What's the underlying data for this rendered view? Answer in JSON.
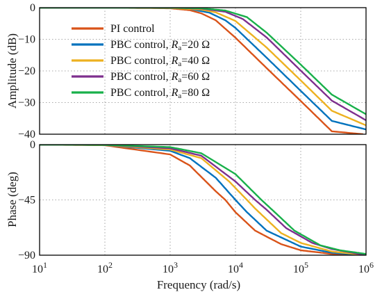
{
  "chart_data": {
    "type": "line",
    "xscale": "log",
    "xlim": [
      10,
      1000000
    ],
    "xlabel": "Frequency (rad/s)",
    "xticks": [
      10,
      100,
      1000,
      10000,
      100000,
      1000000
    ],
    "grid": true,
    "legend_position": "upper-left of top panel",
    "colors": {
      "pi": "#d95319",
      "ra20": "#0072bd",
      "ra40": "#edb120",
      "ra60": "#7e2f8e",
      "ra80": "#18b04a"
    },
    "legend": [
      {
        "key": "pi",
        "label": "PI      control"
      },
      {
        "key": "ra20",
        "label": "PBC control, ",
        "sym": "R",
        "sub": "a",
        "suffix": "=20 Ω"
      },
      {
        "key": "ra40",
        "label": "PBC control, ",
        "sym": "R",
        "sub": "a",
        "suffix": "=40 Ω"
      },
      {
        "key": "ra60",
        "label": "PBC control, ",
        "sym": "R",
        "sub": "a",
        "suffix": "=60 Ω"
      },
      {
        "key": "ra80",
        "label": "PBC control, ",
        "sym": "R",
        "sub": "a",
        "suffix": "=80 Ω"
      }
    ],
    "panels": [
      {
        "id": "amplitude",
        "ylabel": "Amplitude (dB)",
        "ylim": [
          -40,
          0
        ],
        "yticks": [
          0,
          -10,
          -20,
          -30,
          -40
        ],
        "series": [
          {
            "key": "pi",
            "x": [
              10,
              100,
              1000,
              2000,
              3000,
              5000,
              10000,
              30000,
              100000,
              300000,
              900000
            ],
            "y": [
              0,
              0,
              -0.2,
              -0.8,
              -1.8,
              -4.0,
              -9.5,
              -19.1,
              -29.5,
              -39.1,
              -40
            ]
          },
          {
            "key": "ra20",
            "x": [
              10,
              100,
              1000,
              2000,
              4000,
              7000,
              10000,
              30000,
              100000,
              300000,
              1000000
            ],
            "y": [
              0,
              0,
              -0.1,
              -0.4,
              -1.6,
              -4.0,
              -6.4,
              -15.8,
              -26.3,
              -35.8,
              -38.5
            ]
          },
          {
            "key": "ra40",
            "x": [
              10,
              100,
              1000,
              3000,
              5000,
              10000,
              30000,
              100000,
              300000,
              1000000
            ],
            "y": [
              0,
              0,
              -0.1,
              -0.6,
              -1.5,
              -4.2,
              -12.6,
              -23.0,
              -32.6,
              -37.2
            ]
          },
          {
            "key": "ra60",
            "x": [
              10,
              100,
              1000,
              3000,
              7000,
              13000,
              30000,
              100000,
              300000,
              1000000
            ],
            "y": [
              0,
              0,
              0,
              -0.3,
              -1.3,
              -3.6,
              -9.4,
              -19.9,
              -29.4,
              -35.6
            ]
          },
          {
            "key": "ra80",
            "x": [
              10,
              100,
              1000,
              3000,
              7000,
              15000,
              30000,
              100000,
              300000,
              1000000
            ],
            "y": [
              0,
              0,
              0,
              -0.2,
              -0.9,
              -3.0,
              -7.9,
              -18.0,
              -27.5,
              -33.7
            ]
          }
        ]
      },
      {
        "id": "phase",
        "ylabel": "Phase (deg)",
        "ylim": [
          -90,
          0
        ],
        "yticks": [
          0,
          -45,
          -90
        ],
        "series": [
          {
            "key": "pi",
            "x": [
              10,
              100,
              1000,
              2000,
              5000,
              7000,
              10000,
              20000,
              50000,
              100000,
              300000,
              1000000
            ],
            "y": [
              0,
              -0.5,
              -8,
              -17,
              -38,
              -45,
              -55,
              -70,
              -81,
              -86,
              -89,
              -90
            ]
          },
          {
            "key": "ra20",
            "x": [
              10,
              100,
              1000,
              2000,
              5000,
              10000,
              15000,
              30000,
              100000,
              300000,
              1000000
            ],
            "y": [
              0,
              -0.3,
              -5,
              -11,
              -27,
              -45,
              -55,
              -70,
              -83,
              -88,
              -90
            ]
          },
          {
            "key": "ra40",
            "x": [
              10,
              100,
              1000,
              3000,
              8000,
              15000,
              20000,
              50000,
              100000,
              300000,
              1000000
            ],
            "y": [
              0,
              -0.3,
              -4,
              -11,
              -30,
              -45,
              -52,
              -72,
              -80,
              -87,
              -90
            ]
          },
          {
            "key": "ra60",
            "x": [
              10,
              100,
              1000,
              3000,
              10000,
              20000,
              30000,
              60000,
              150000,
              300000,
              1000000
            ],
            "y": [
              0,
              -0.2,
              -3,
              -9,
              -30,
              -45,
              -53,
              -68,
              -80,
              -85,
              -90
            ]
          },
          {
            "key": "ra80",
            "x": [
              10,
              100,
              1000,
              3000,
              10000,
              25000,
              40000,
              80000,
              200000,
              400000,
              1000000
            ],
            "y": [
              0,
              -0.2,
              -2,
              -7,
              -24,
              -45,
              -55,
              -70,
              -82,
              -86,
              -89
            ]
          }
        ]
      }
    ]
  }
}
